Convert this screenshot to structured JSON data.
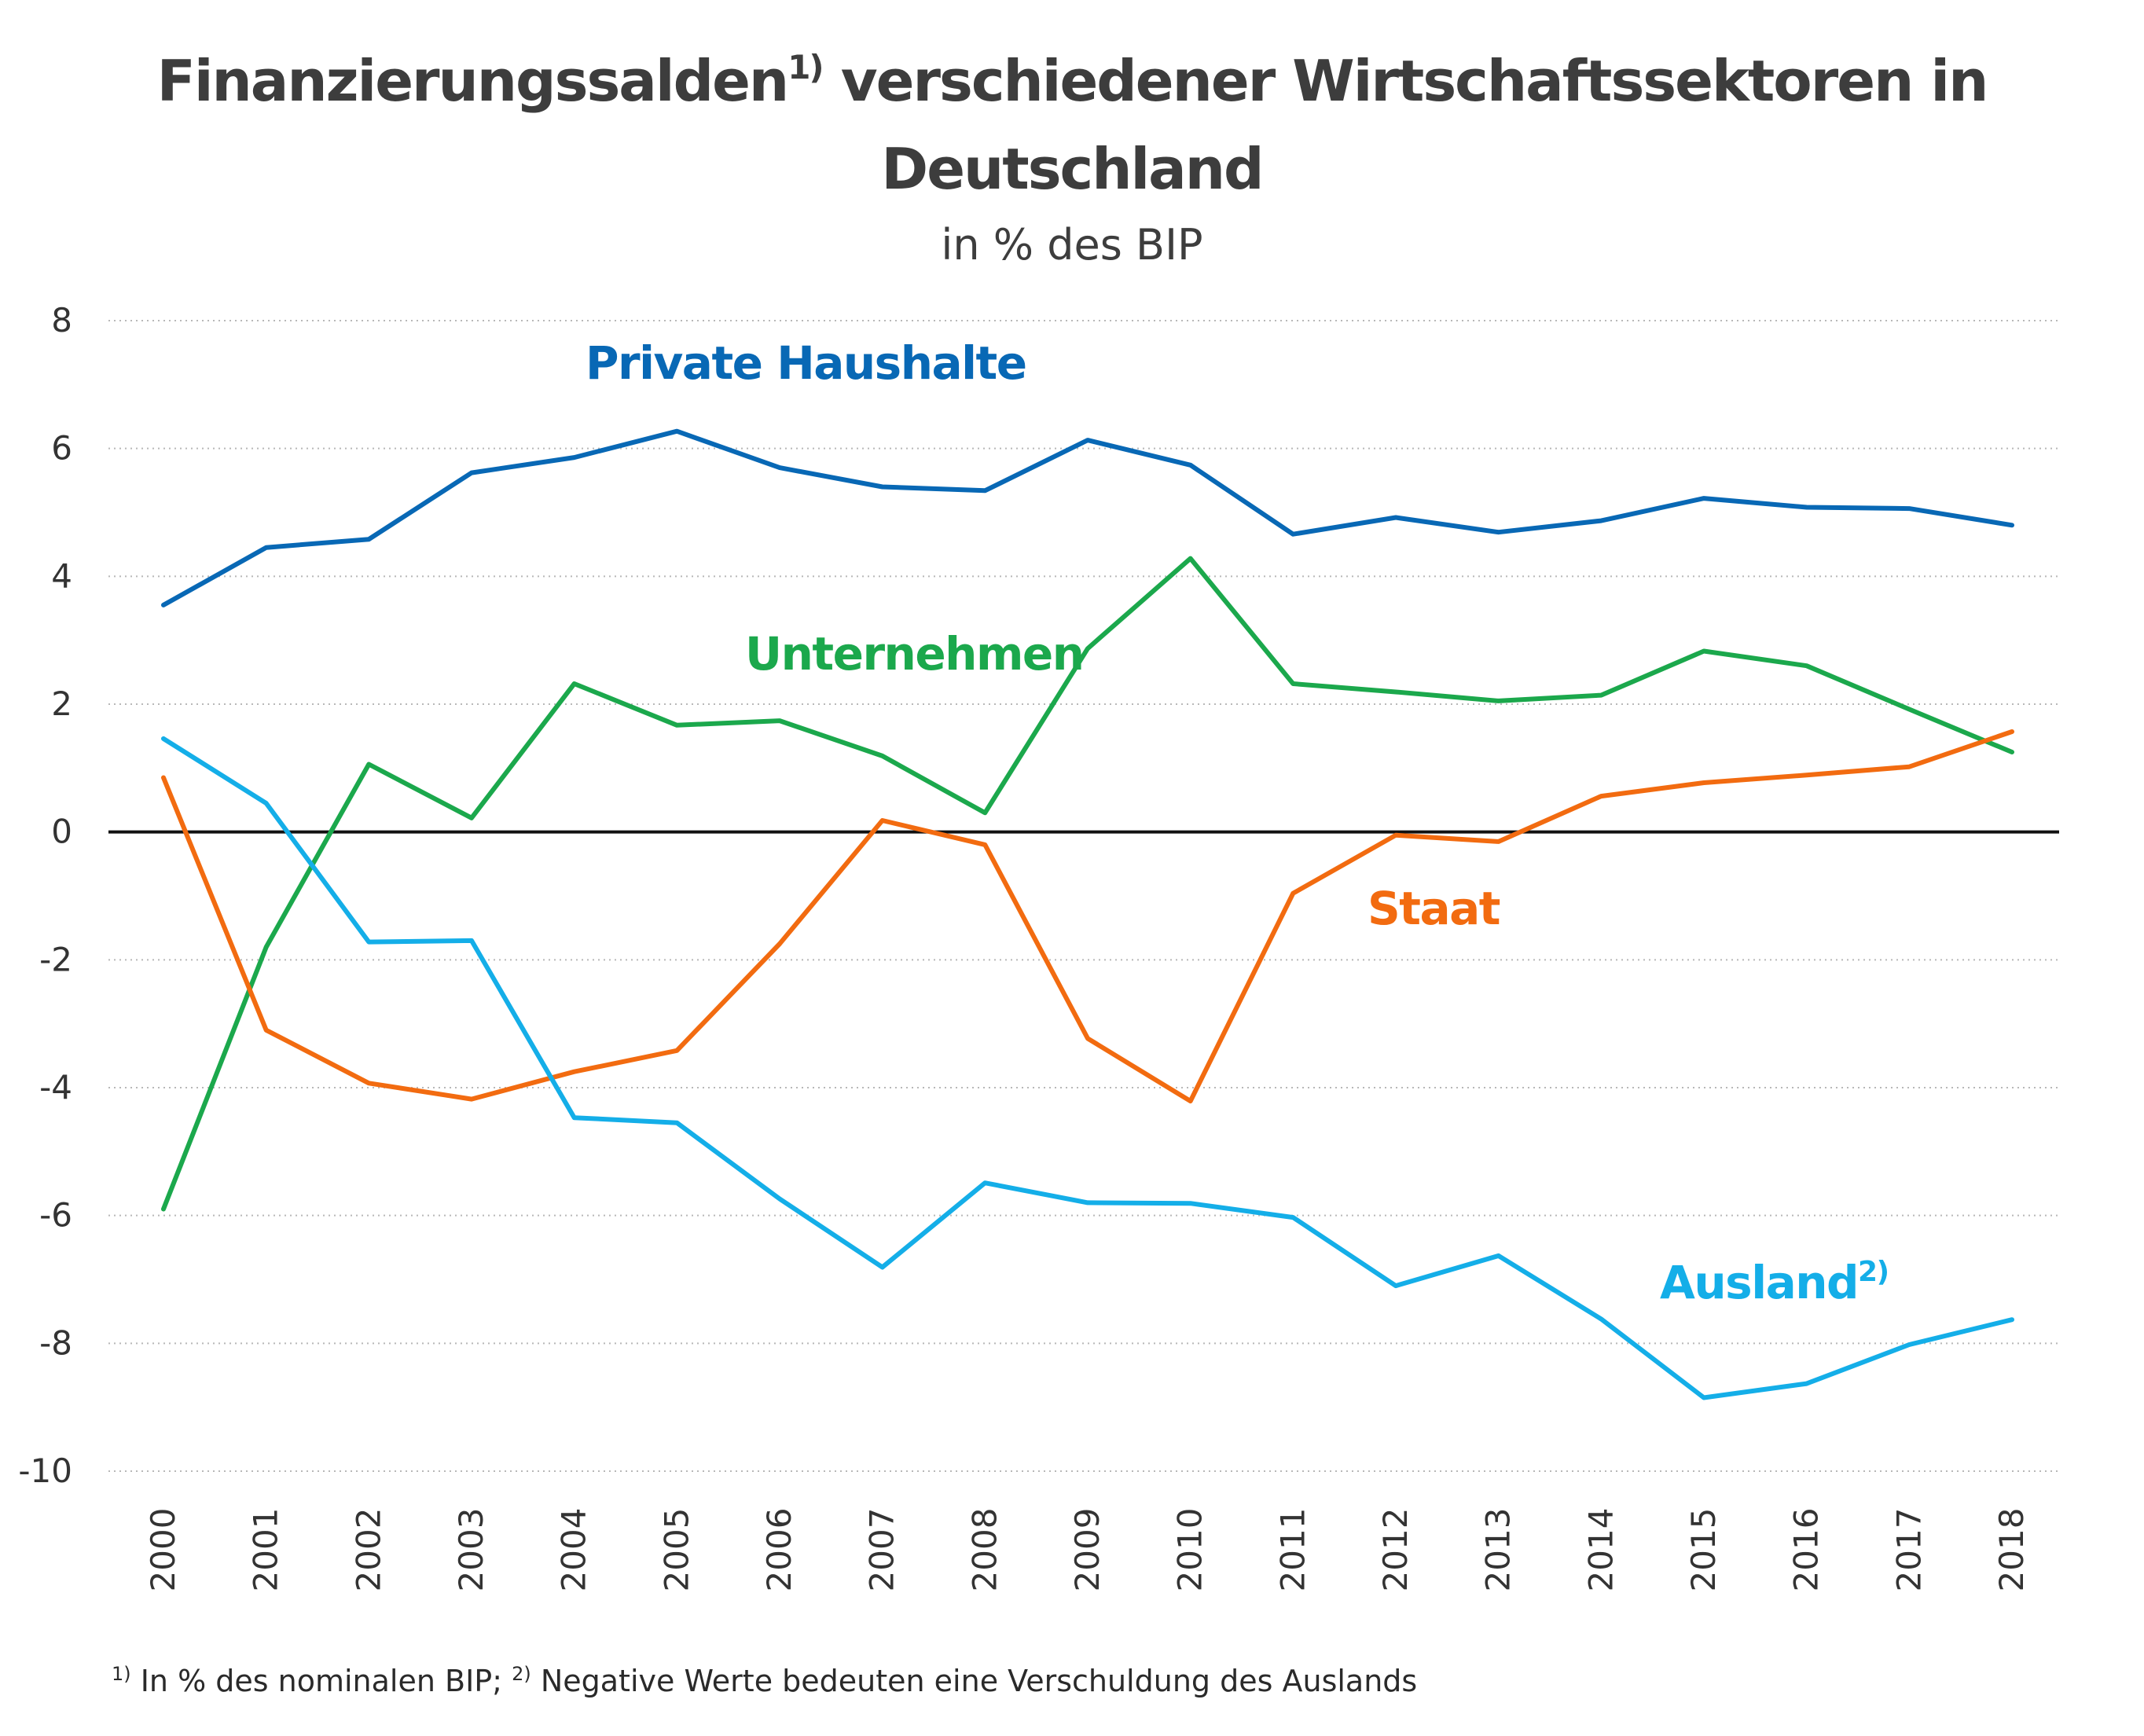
{
  "chart_data": {
    "type": "line",
    "title_line1": "Finanzierungssalden",
    "title_line1_sup": "1)",
    "title_line1_rest": " verschiedener Wirtschaftssektoren in",
    "title_line2": "Deutschland",
    "subtitle": "in % des BIP",
    "x": [
      "2000",
      "2001",
      "2002",
      "2003",
      "2004",
      "2005",
      "2006",
      "2007",
      "2008",
      "2009",
      "2010",
      "2011",
      "2012",
      "2013",
      "2014",
      "2015",
      "2016",
      "2017",
      "2018"
    ],
    "ylim": [
      -10,
      8
    ],
    "yticks": [
      "8",
      "6",
      "4",
      "2",
      "0",
      "-2",
      "-4",
      "-6",
      "-8",
      "-10"
    ],
    "grid": true,
    "series": [
      {
        "key": "private",
        "name": "Private Haushalte",
        "name_sup": "",
        "color": "#0868b5",
        "values": [
          3.55,
          4.45,
          4.58,
          5.62,
          5.86,
          6.27,
          5.7,
          5.4,
          5.34,
          6.13,
          5.74,
          4.66,
          4.92,
          4.69,
          4.87,
          5.22,
          5.08,
          5.06,
          4.8
        ]
      },
      {
        "key": "unternehmen",
        "name": "Unternehmen",
        "name_sup": "",
        "color": "#1ba84c",
        "values": [
          -5.9,
          -1.8,
          1.06,
          0.22,
          2.32,
          1.67,
          1.74,
          1.19,
          0.3,
          2.87,
          4.28,
          2.32,
          2.19,
          2.05,
          2.14,
          2.83,
          2.6,
          1.92,
          1.25
        ]
      },
      {
        "key": "staat",
        "name": "Staat",
        "name_sup": "",
        "color": "#f26b10",
        "values": [
          0.85,
          -3.1,
          -3.93,
          -4.18,
          -3.75,
          -3.42,
          -1.75,
          0.18,
          -0.2,
          -3.23,
          -4.21,
          -0.96,
          -0.05,
          -0.15,
          0.56,
          0.77,
          0.89,
          1.02,
          1.57
        ]
      },
      {
        "key": "ausland",
        "name": "Ausland",
        "name_sup": "2)",
        "color": "#14aee8",
        "values": [
          1.46,
          0.45,
          -1.72,
          -1.7,
          -4.47,
          -4.55,
          -5.74,
          -6.81,
          -5.49,
          -5.8,
          -5.81,
          -6.03,
          -7.1,
          -6.63,
          -7.62,
          -8.85,
          -8.63,
          -8.02,
          -7.63
        ]
      }
    ],
    "footnote_sup1": "1)",
    "footnote_text1": " In % des nominalen BIP; ",
    "footnote_sup2": "2)",
    "footnote_text2": " Negative Werte bedeuten eine Verschuldung des Auslands"
  }
}
